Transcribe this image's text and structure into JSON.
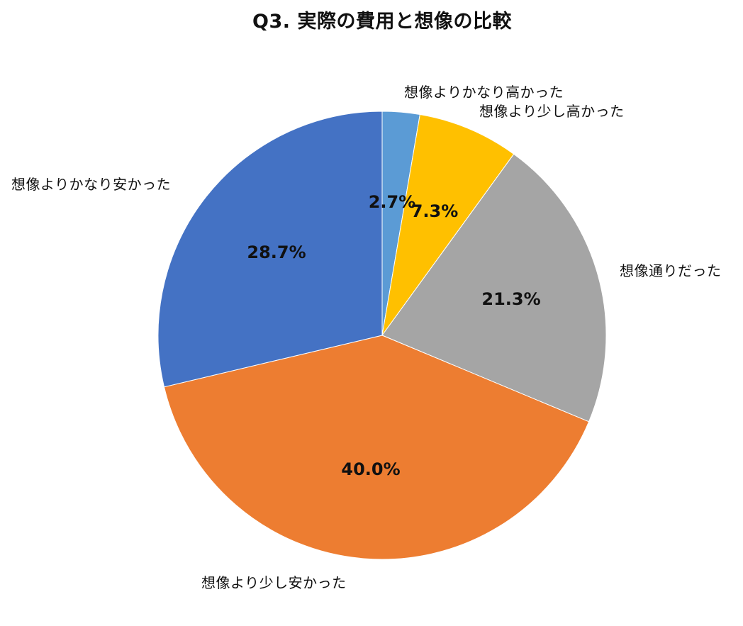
{
  "chart_data": {
    "type": "pie",
    "title": "Q3. 実際の費用と想像の比較",
    "start_angle": "12 o'clock, clockwise",
    "categories": [
      "想像よりかなり高かった",
      "想像より少し高かった",
      "想像通りだった",
      "想像より少し安かった",
      "想像よりかなり安かった"
    ],
    "values": [
      2.7,
      7.3,
      21.3,
      40.0,
      28.7
    ],
    "value_labels": [
      "2.7%",
      "7.3%",
      "21.3%",
      "40.0%",
      "28.7%"
    ],
    "colors": [
      "#5B9BD5",
      "#FFC000",
      "#A5A5A5",
      "#ED7D31",
      "#4472C4"
    ],
    "unit": "%",
    "legend": "none (category labels placed outside slices)"
  },
  "labels": {
    "title": "Q3. 実際の費用と想像の比較",
    "cat_0": "想像よりかなり高かった",
    "cat_1": "想像より少し高かった",
    "cat_2": "想像通りだった",
    "cat_3": "想像より少し安かった",
    "cat_4": "想像よりかなり安かった",
    "pct_0": "2.7%",
    "pct_1": "7.3%",
    "pct_2": "21.3%",
    "pct_3": "40.0%",
    "pct_4": "28.7%"
  }
}
